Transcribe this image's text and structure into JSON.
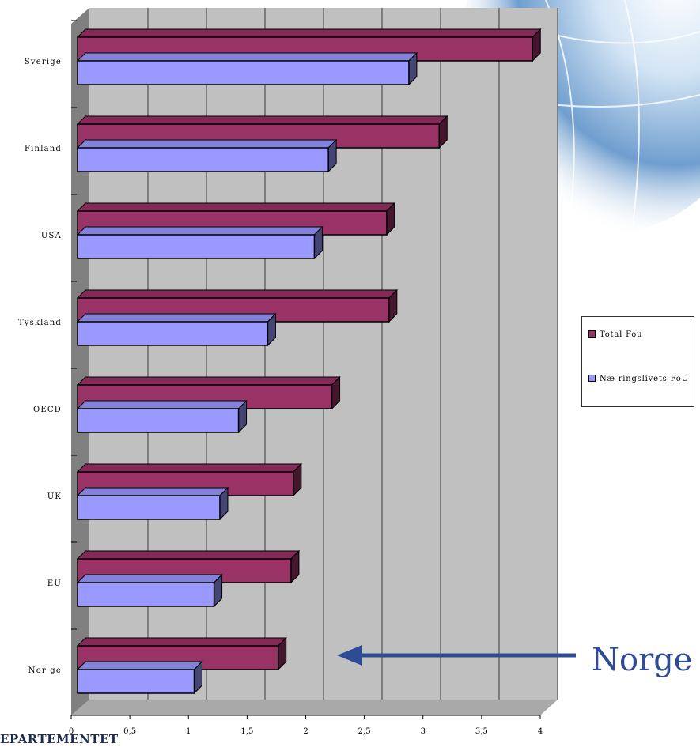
{
  "chart_data": {
    "type": "bar",
    "orientation": "horizontal",
    "categories": [
      "Sverige",
      "Finland",
      "USA",
      "Tyskland",
      "OECD",
      "UK",
      "EU",
      "Nor ge"
    ],
    "series": [
      {
        "name": "Total Fou",
        "values": [
          3.9,
          3.1,
          2.65,
          2.67,
          2.18,
          1.85,
          1.83,
          1.72
        ]
      },
      {
        "name": "Næ ringslivets FoU",
        "values": [
          2.84,
          2.15,
          2.03,
          1.63,
          1.38,
          1.22,
          1.17,
          1.0
        ]
      }
    ],
    "x_tick_labels": [
      "0",
      "0,5",
      "1",
      "1,5",
      "2",
      "2,5",
      "3",
      "3,5",
      "4"
    ],
    "xlim": [
      0,
      4
    ],
    "grid": true,
    "legend_position": "right",
    "colors": {
      "total": "#993366",
      "naering": "#9999ff",
      "wall": "#c0c0c0"
    }
  },
  "annotation": {
    "label": "Norge",
    "color": "#2e4c96"
  },
  "footer": {
    "text": "EPARTEMENTET"
  }
}
